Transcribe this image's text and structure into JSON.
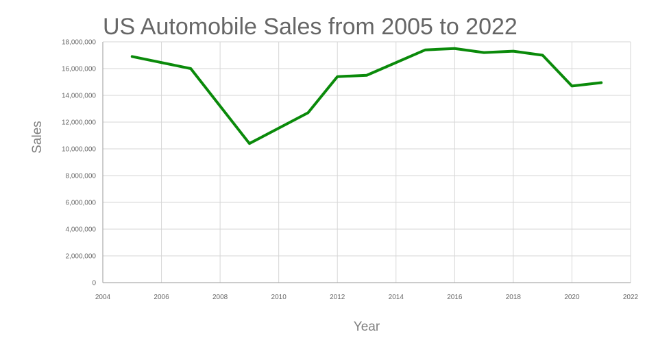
{
  "chart_data": {
    "type": "line",
    "title": "US Automobile Sales from 2005 to 2022",
    "xlabel": "Year",
    "ylabel": "Sales",
    "xlim": [
      2004,
      2022
    ],
    "ylim": [
      0,
      18000000
    ],
    "x_ticks": [
      2004,
      2006,
      2008,
      2010,
      2012,
      2014,
      2016,
      2018,
      2020,
      2022
    ],
    "y_ticks": [
      0,
      2000000,
      4000000,
      6000000,
      8000000,
      10000000,
      12000000,
      14000000,
      16000000,
      18000000
    ],
    "x_tick_labels": [
      "2004",
      "2006",
      "2008",
      "2010",
      "2012",
      "2014",
      "2016",
      "2018",
      "2020",
      "2022"
    ],
    "y_tick_labels": [
      "0",
      "2,000,000",
      "4,000,000",
      "6,000,000",
      "8,000,000",
      "10,000,000",
      "12,000,000",
      "14,000,000",
      "16,000,000",
      "18,000,000"
    ],
    "grid": true,
    "legend": "none",
    "series": [
      {
        "color": "#0a8a0a",
        "x": [
          2005,
          2007,
          2009,
          2011,
          2012,
          2013,
          2015,
          2016,
          2017,
          2018,
          2019,
          2020,
          2021
        ],
        "values": [
          16900000,
          16000000,
          10400000,
          12700000,
          15400000,
          15500000,
          17400000,
          17500000,
          17200000,
          17300000,
          17000000,
          14700000,
          14950000
        ]
      }
    ]
  }
}
